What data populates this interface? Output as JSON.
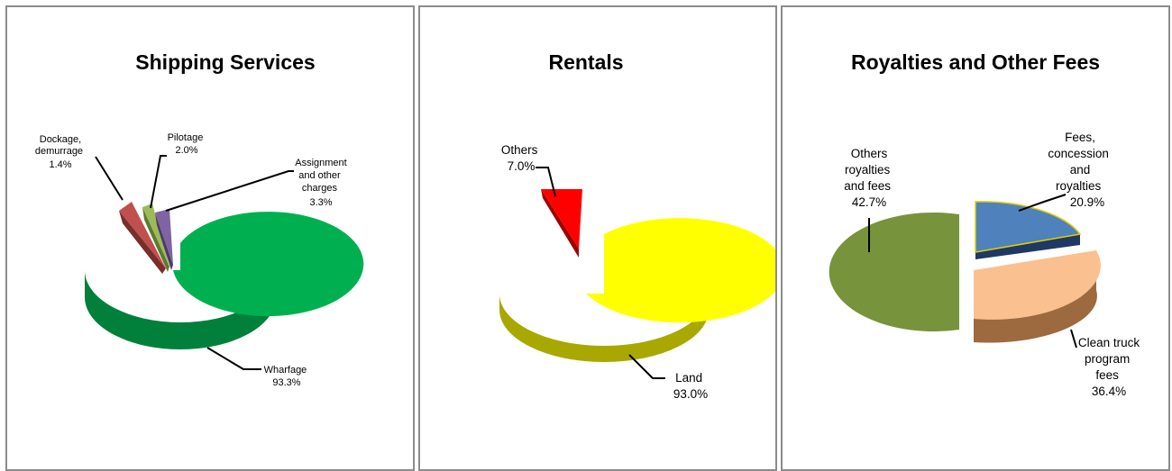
{
  "chart_data": [
    {
      "type": "pie",
      "title": "Shipping Services",
      "slices": [
        {
          "label": "Wharfage",
          "value": "93.3%",
          "color": "#00b050"
        },
        {
          "label": "Dockage, demurrage",
          "value": "1.4%",
          "color": "#c0504d"
        },
        {
          "label": "Pilotage",
          "value": "2.0%",
          "color": "#9bbb59"
        },
        {
          "label": "Assignment and other charges",
          "value": "3.3%",
          "color": "#8064a2"
        }
      ]
    },
    {
      "type": "pie",
      "title": "Rentals",
      "slices": [
        {
          "label": "Land",
          "value": "93.0%",
          "color": "#ffff00"
        },
        {
          "label": "Others",
          "value": "7.0%",
          "color": "#ff0000"
        }
      ]
    },
    {
      "type": "pie",
      "title": "Royalties and Other Fees",
      "slices": [
        {
          "label": "Fees, concession and royalties",
          "value": "20.9%",
          "color": "#4f81bd"
        },
        {
          "label": "Clean truck program fees",
          "value": "36.4%",
          "color": "#fac090"
        },
        {
          "label": "Others royalties and fees",
          "value": "42.7%",
          "color": "#77933c"
        }
      ]
    }
  ]
}
